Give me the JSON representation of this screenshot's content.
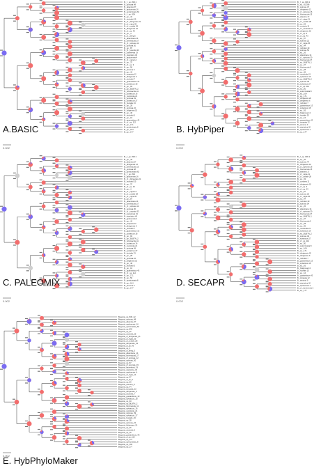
{
  "colors": {
    "branch": "#555555",
    "red": "#f26d6d",
    "blue": "#7a6cf2",
    "gray": "#cfcfcf",
    "tip_text": "#333333"
  },
  "panels": [
    {
      "id": "A",
      "label": "A.BASIC",
      "scale": "0.002",
      "tips": [
        "B._f._sp. 836 2",
        "B._spinosa 48",
        "B._altamira 57",
        "B._apoloensis 16",
        "B._spinicristata 62",
        "B._f._sp. 834",
        "B._sp._42",
        "B._nicholsii 25",
        "B._cf._dirrigensis 21",
        "B._cf._nigra 35",
        "B._cf._uvalde 28",
        "B._dirrigensis 22",
        "B._cf._sp. 43",
        "B._sp._4",
        "B._cf._dirrig 5",
        "B._altamirana 14",
        "B._fulvimacula 27",
        "B._cf._spinosa 12",
        "B._spinosa 30",
        "B._sp._87",
        "B._cf._jucunda 33",
        "B._kamelevai 19",
        "B._stanistica 40",
        "B._apoloensis 4",
        "B._cf._nigra 14",
        "B._sp._37",
        "B._cf._sp. 9",
        "B._sp._50",
        "B._armona 9",
        "B._sp._44",
        "B._torquata 12",
        "B._dirrigensis 6",
        "B._nicholsii 7",
        "B._guaraniticus 13",
        "B._sylvaticus 18",
        "B._sp._93",
        "B._sp._BLBTN_2",
        "B._fulvimacula 11",
        "B._sylvaticus 16",
        "B._monticola 21",
        "B._spinosa 49",
        "B._sylvaticus 27",
        "B._huvialis 23",
        "B._sp._28",
        "B._spinosa 22",
        "B._fuliginosa 13",
        "B._sp._46",
        "B._nicholsii 5",
        "B._sp._16",
        "B._guaraniticus 43",
        "B._cf._sp. 112",
        "B._sp._171",
        "B._spinicristata 8",
        "B._sp._104",
        "B._sp._177"
      ]
    },
    {
      "id": "B",
      "label": "B. HybPiper",
      "scale": "0.002",
      "tips": [
        "B._f._sp. 836 2",
        "B._sp._42 398",
        "B._spinosa 47",
        "B._dirrigensis 12",
        "B._cf._spinosa 16",
        "B._fulvimacula 15",
        "B._altamira 17",
        "B._cf._nigra 21",
        "B._cf._uvalde 28",
        "B._sp._33",
        "B._contorta 11",
        "B._cf._contorta 12",
        "B._dirrigensis 15",
        "B._cf._sp. 4",
        "B._cf._sp. 43",
        "B._sp._87",
        "B._spinosa 22",
        "B._cf._nigra 35",
        "B._sp._44",
        "B._nicholsii 19",
        "B._spinosa 54",
        "B._sp._26",
        "B._altamirana 14",
        "B._cf._spinosa 30",
        "B._fulvimacula 27",
        "B._sp._BLBTN_1",
        "B._sp._37",
        "B._fulvimacula 9",
        "B._sp._28",
        "B._sp._46",
        "B._monticola 21",
        "B._sylvaticus 16",
        "B._sp._BLBTN_2",
        "B._spinosa 49",
        "B._sylvaticus 27",
        "B._cf._sp. 112",
        "B._sp._50",
        "B._spinicristata 8",
        "B._sp._104",
        "B._sp._171",
        "B._dirrigensis 22",
        "B._dirrigensis 6",
        "B._nicholsii 7",
        "B._guaraniticus 13",
        "B._sylvaticus 18",
        "B._sp._93",
        "B._fuliginosa 13",
        "B._huvialis 23",
        "B._sp._16",
        "B._guaraniticus 43",
        "B._torquata 12",
        "B._armona 9",
        "B._stanistica 40",
        "B._apoloensis 4",
        "B._sp._177"
      ]
    },
    {
      "id": "C",
      "label": "C. PALEOMIX",
      "scale": "0.002",
      "tips": [
        "B._f._sp. 836 2",
        "B._sp._42",
        "B._altamira 57",
        "B._dirrigensis 12",
        "B._fulvimacula 15",
        "B._spinosa 48",
        "B._spinicristata 62",
        "B._f._sp. 834",
        "B._apoloensis 16",
        "B._cf._dirrigensis 21",
        "B._nicholsii 25",
        "B._sp._37",
        "B._cf._sp. 43",
        "B._sp._4",
        "B._cf._nigra 14",
        "B._cf._uvalde 28",
        "B._cf._nigra 35",
        "B._sp._87",
        "B._altamirana 14",
        "B._fulvimacula 27",
        "B._cf._spinosa 12",
        "B._spinosa 30",
        "B._cf._jucunda 33",
        "B._kamelevai 19",
        "B._stanistica 40",
        "B._apoloensis 4",
        "B._sp._44",
        "B._torquata 12",
        "B._dirrigensis 6",
        "B._nicholsii 7",
        "B._guaraniticus 13",
        "B._sylvaticus 18",
        "B._sp._93",
        "B._sp._BLBTN_2",
        "B._fulvimacula 11",
        "B._sylvaticus 16",
        "B._monticola 21",
        "B._spinosa 49",
        "B._sylvaticus 27",
        "B._huvialis 23",
        "B._sp._28",
        "B._spinosa 22",
        "B._fuliginosa 13",
        "B._sp._46",
        "B._nicholsii 5",
        "B._sp._16",
        "B._guaraniticus 43",
        "B._cf._sp. 112",
        "B._sp._171",
        "B._sp._50",
        "B._spinicristata 8",
        "B._sp._104",
        "B._armona 9",
        "B._sp._177"
      ]
    },
    {
      "id": "D",
      "label": "D. SECAPR",
      "scale": "0.002",
      "tips": [
        "B._f._sp. 836 2",
        "B._sp._42",
        "B._spinosa 47",
        "B._dirrigensis 12",
        "B._cf._spinosa 16",
        "B._fulvimacula 15",
        "B._altamira 17",
        "B._cf._nigra 21",
        "B._cf._uvalde 28",
        "B._sp._33",
        "B._contorta 11",
        "B._dirrigensis 15",
        "B._cf._sp. 4",
        "B._cf._sp. 43",
        "B._sp._87",
        "B._spinosa 22",
        "B._cf._nigra 35",
        "B._sp._44",
        "B._nicholsii 19",
        "B._spinosa 54",
        "B._sp._26",
        "B._altamirana 14",
        "B._cf._spinosa 30",
        "B._fulvimacula 27",
        "B._sp._BLBTN_1",
        "B._sp._37",
        "B._fulvimacula 9",
        "B._sp._28",
        "B._sp._46",
        "B._monticola 21",
        "B._sylvaticus 16",
        "B._sp._BLBTN_2",
        "B._spinosa 49",
        "B._sylvaticus 27",
        "B._cf._sp. 112",
        "B._sp._50",
        "B._spinicristata 8",
        "B._sp._104",
        "B._sp._171",
        "B._dirrigensis 22",
        "B._dirrigensis 6",
        "B._nicholsii 7",
        "B._guaraniticus 13",
        "B._sylvaticus 18",
        "B._sp._93",
        "B._fuliginosa 13",
        "B._huvialis 23",
        "B._sp._16",
        "B._guaraniticus 43",
        "B._torquata 12",
        "B._armona 9",
        "B._stanistica 40",
        "B._apoloensis 4",
        "B._cf._luminensis 2",
        "B._sp._177"
      ]
    },
    {
      "id": "E",
      "label": "E. HybPhyloMaker",
      "scale": "0.002",
      "tips": [
        "Begonia_sp_836_22",
        "Begonia_spinosa_48",
        "Begonia_altamira_57",
        "Begonia_apoloensis_16",
        "Begonia_spinicristata_62",
        "Begonia_sp_834",
        "Begonia_sp_42",
        "Begonia_nicholsii_25",
        "Begonia_cf_dirrigensis_21",
        "Begonia_cf_nigra_35",
        "Begonia_cf_uvalde_28",
        "Begonia_dirrigensis_22",
        "Begonia_cf_sp_43",
        "Begonia_sp_4",
        "Begonia_cf_dirrig_5",
        "Begonia_altamirana_14",
        "Begonia_fulvimacula_27",
        "Begonia_cf_spinosa_12",
        "Begonia_spinosa_30",
        "Begonia_sp_87",
        "Begonia_cf_jucunda_33",
        "Begonia_kamelevai_19",
        "Begonia_stanistica_40",
        "Begonia_apoloensis_4",
        "Begonia_cf_nigra_14",
        "Begonia_sp_37",
        "Begonia_cf_sp_9",
        "Begonia_sp_50",
        "Begonia_armona_9",
        "Begonia_sp_44",
        "Begonia_torquata_12",
        "Begonia_dirrigensis_6",
        "Begonia_nicholsii_7",
        "Begonia_guaraniticus_13",
        "Begonia_sylvaticus_18",
        "Begonia_sp_93",
        "Begonia_sp_BLBTN_2",
        "Begonia_fulvimacula_11",
        "Begonia_sylvaticus_16",
        "Begonia_monticola_21",
        "Begonia_spinosa_49",
        "Begonia_sylvaticus_27",
        "Begonia_huvialis_23",
        "Begonia_sp_28",
        "Begonia_spinosa_22",
        "Begonia_fuliginosa_13",
        "Begonia_sp_46",
        "Begonia_nicholsii_5",
        "Begonia_sp_16",
        "Begonia_guaraniticus_43",
        "Begonia_cf_sp_112",
        "Begonia_sp_171",
        "Begonia_spinicristata_8",
        "Begonia_sp_104",
        "Begonia_sp_177"
      ]
    }
  ]
}
